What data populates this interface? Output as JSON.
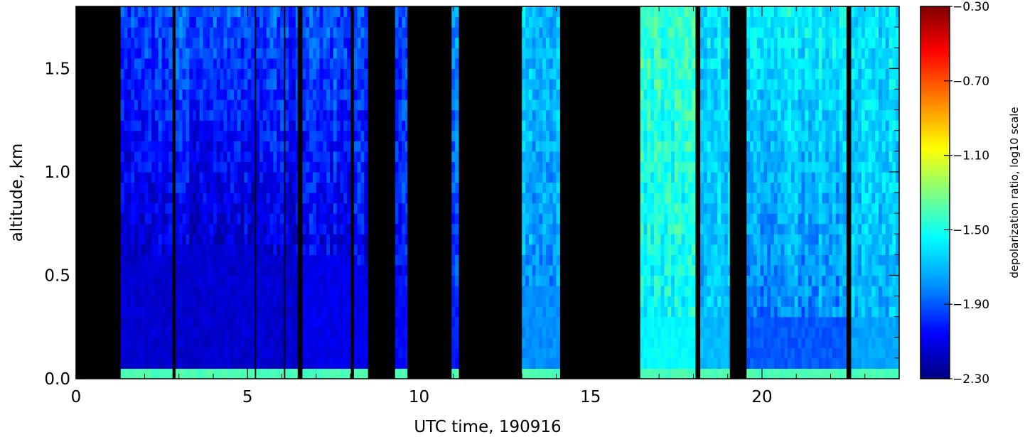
{
  "chart_data": {
    "type": "heatmap",
    "title": "",
    "xlabel": "UTC time, 190916",
    "ylabel": "altitude, km",
    "xlim": [
      0,
      24
    ],
    "ylim": [
      0,
      1.8
    ],
    "x_ticks": [
      0,
      5,
      10,
      15,
      20
    ],
    "x_tick_labels": [
      "0",
      "5",
      "10",
      "15",
      "20"
    ],
    "y_ticks": [
      0.0,
      0.5,
      1.0,
      1.5
    ],
    "y_tick_labels": [
      "0.0",
      "0.5",
      "1.0",
      "1.5"
    ],
    "colorbar": {
      "label": "depolarization ratio, log10 scale",
      "min": -2.3,
      "max": -0.3,
      "ticks": [
        -2.3,
        -1.9,
        -1.5,
        -1.1,
        -0.7,
        -0.3
      ],
      "tick_labels": [
        "−2.30",
        "−1.90",
        "−1.50",
        "−1.10",
        "−0.70",
        "−0.30"
      ],
      "colormap": "rainbow (dark blue to dark red)",
      "colors": [
        "#000080",
        "#0000ff",
        "#00a0ff",
        "#00ffff",
        "#80ff80",
        "#ffff00",
        "#ff8000",
        "#ff0000",
        "#800000"
      ]
    },
    "no_data_color": "#000000",
    "segments": [
      {
        "x": [
          1.3,
          2.8
        ],
        "top": -1.95,
        "bottom": -2.15,
        "boundary": 0.58,
        "low": -2.15
      },
      {
        "x": [
          2.9,
          5.2
        ],
        "top": -1.9,
        "bottom": -2.15,
        "boundary": 0.62,
        "low": -2.15
      },
      {
        "x": [
          5.25,
          6.05
        ],
        "top": -1.92,
        "bottom": -2.15,
        "boundary": 0.58,
        "low": -2.15
      },
      {
        "x": [
          6.1,
          6.45
        ],
        "top": -1.95,
        "bottom": -2.15,
        "boundary": 0.58,
        "low": -2.15
      },
      {
        "x": [
          6.6,
          8.0
        ],
        "top": -1.9,
        "bottom": -2.1,
        "boundary": 0.55,
        "low": -2.1
      },
      {
        "x": [
          8.1,
          8.5
        ],
        "top": -1.95,
        "bottom": -2.1,
        "boundary": 0.5,
        "low": -2.1
      },
      {
        "x": [
          9.3,
          9.65
        ],
        "top": -1.95,
        "bottom": -2.05,
        "boundary": 0.4,
        "low": -2.05
      },
      {
        "x": [
          10.95,
          11.15
        ],
        "top": -1.8,
        "bottom": -2.0,
        "boundary": 0.4,
        "low": -2.0
      },
      {
        "x": [
          13.0,
          14.1
        ],
        "top": -1.65,
        "bottom": -1.75,
        "boundary": 0.4,
        "low": -1.8
      },
      {
        "x": [
          16.45,
          18.05
        ],
        "top": -1.45,
        "bottom": -1.55,
        "boundary": 0.3,
        "low": -1.55
      },
      {
        "x": [
          18.2,
          19.05
        ],
        "top": -1.6,
        "bottom": -1.7,
        "boundary": 0.3,
        "low": -1.7
      },
      {
        "x": [
          19.55,
          22.45
        ],
        "top": -1.55,
        "bottom": -1.8,
        "boundary": 0.3,
        "low": -1.9
      },
      {
        "x": [
          22.6,
          24.0
        ],
        "top": -1.6,
        "bottom": -1.7,
        "boundary": 0.3,
        "low": -1.75
      }
    ],
    "surface_layer": {
      "altitude": [
        0.0,
        0.05
      ],
      "value": -1.4
    }
  }
}
